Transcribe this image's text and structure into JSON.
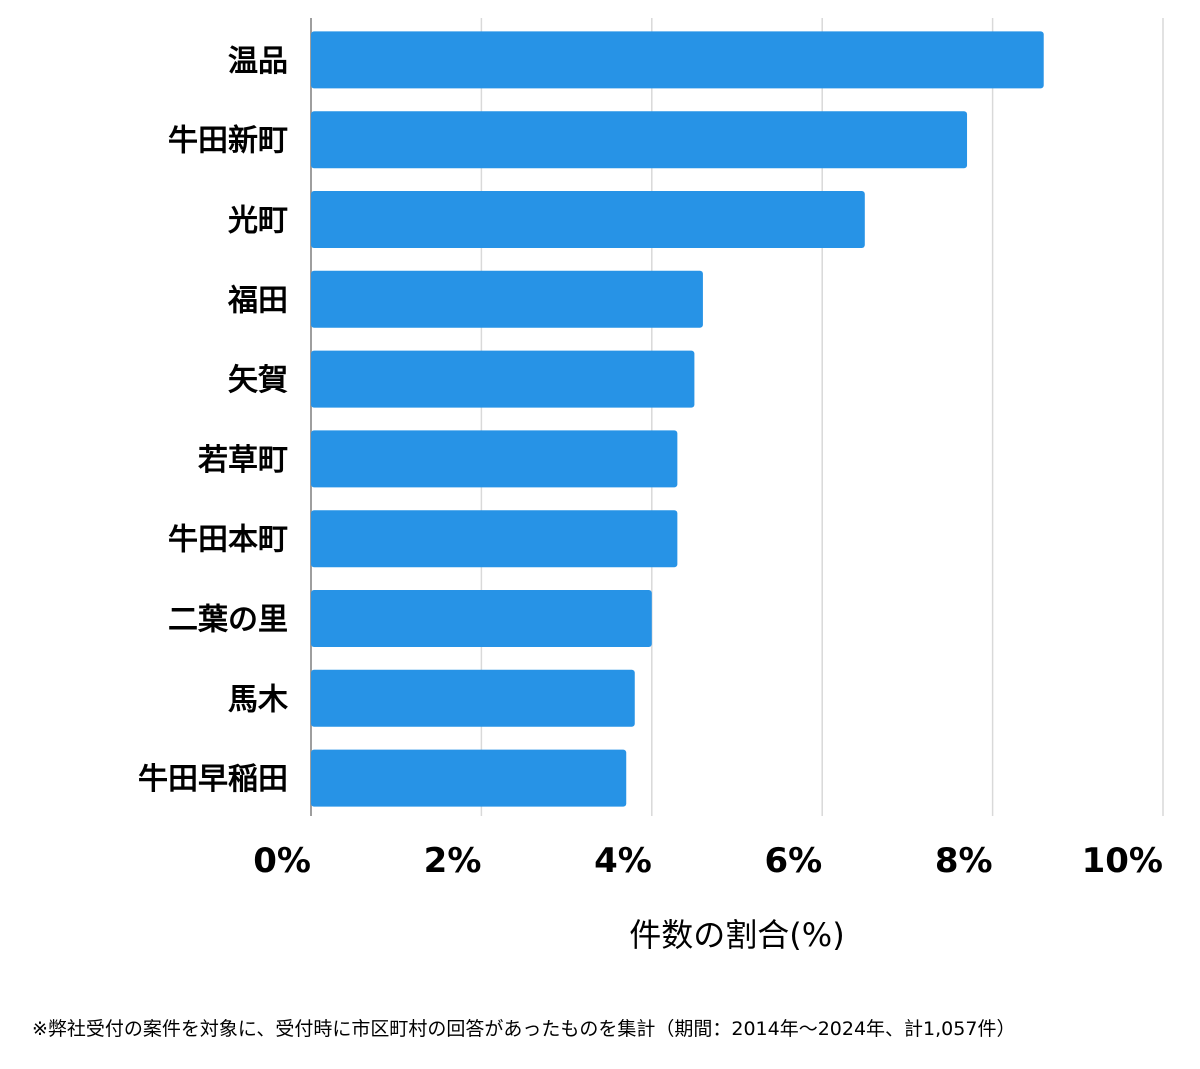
{
  "chart_data": {
    "type": "bar",
    "orientation": "horizontal",
    "categories": [
      "温品",
      "牛田新町",
      "光町",
      "福田",
      "矢賀",
      "若草町",
      "牛田本町",
      "二葉の里",
      "馬木",
      "牛田早稲田"
    ],
    "values": [
      8.6,
      7.7,
      6.5,
      4.6,
      4.5,
      4.3,
      4.3,
      4.0,
      3.8,
      3.7
    ],
    "xlim": [
      0,
      10
    ],
    "xticks": [
      0,
      2,
      4,
      6,
      8,
      10
    ],
    "tick_labels": [
      "0%",
      "2%",
      "4%",
      "6%",
      "8%",
      "10%"
    ],
    "xlabel": "件数の割合(%)",
    "ylabel": "",
    "grid": true,
    "bar_color": "#2793e6",
    "grid_color": "#d9d9d9"
  },
  "footnote": "※弊社受付の案件を対象に、受付時に市区町村の回答があったものを集計（期間：2014年～2024年、計1,057件）"
}
